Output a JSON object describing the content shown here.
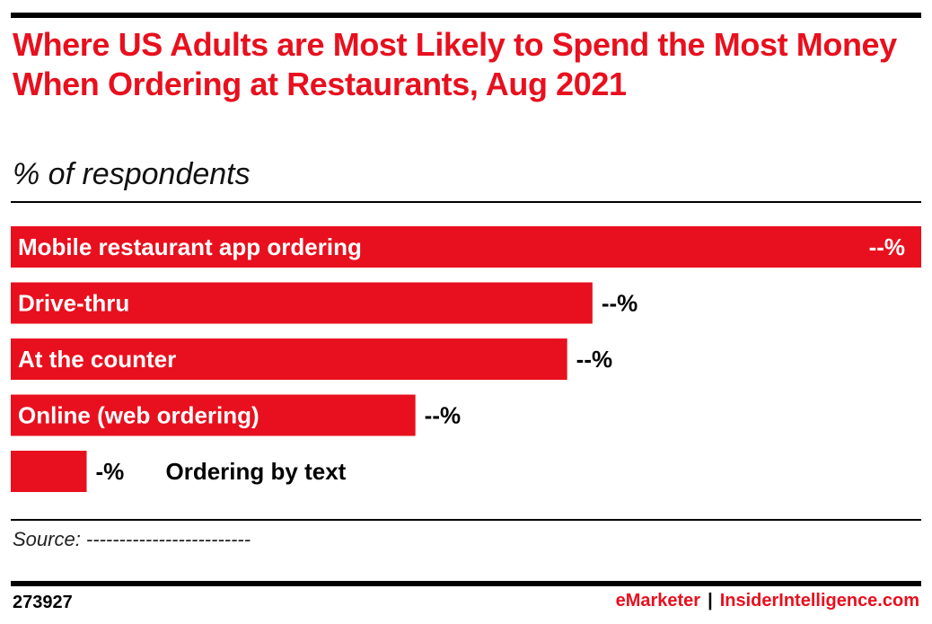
{
  "header": {
    "title": "Where US Adults are Most Likely to Spend the Most Money When Ordering at Restaurants, Aug 2021",
    "subtitle": "% of respondents"
  },
  "footer": {
    "source": "Source: -------------------------",
    "chart_id": "273927",
    "brand_left": "eMarketer",
    "separator": "|",
    "brand_right": "InsiderIntelligence.com"
  },
  "colors": {
    "accent": "#e8101e"
  },
  "chart_data": {
    "type": "bar",
    "orientation": "horizontal",
    "title": "Where US Adults are Most Likely to Spend the Most Money When Ordering at Restaurants, Aug 2021",
    "subtitle": "% of respondents",
    "categories": [
      "Mobile restaurant app ordering",
      "Drive-thru",
      "At the counter",
      "Online (web ordering)",
      "Ordering by text"
    ],
    "values": [
      36,
      23,
      22,
      16,
      3
    ],
    "value_labels": [
      "--%",
      "--%",
      "--%",
      "--%",
      "-%"
    ],
    "xlim": [
      0,
      36
    ],
    "grid": false,
    "legend": "none"
  }
}
